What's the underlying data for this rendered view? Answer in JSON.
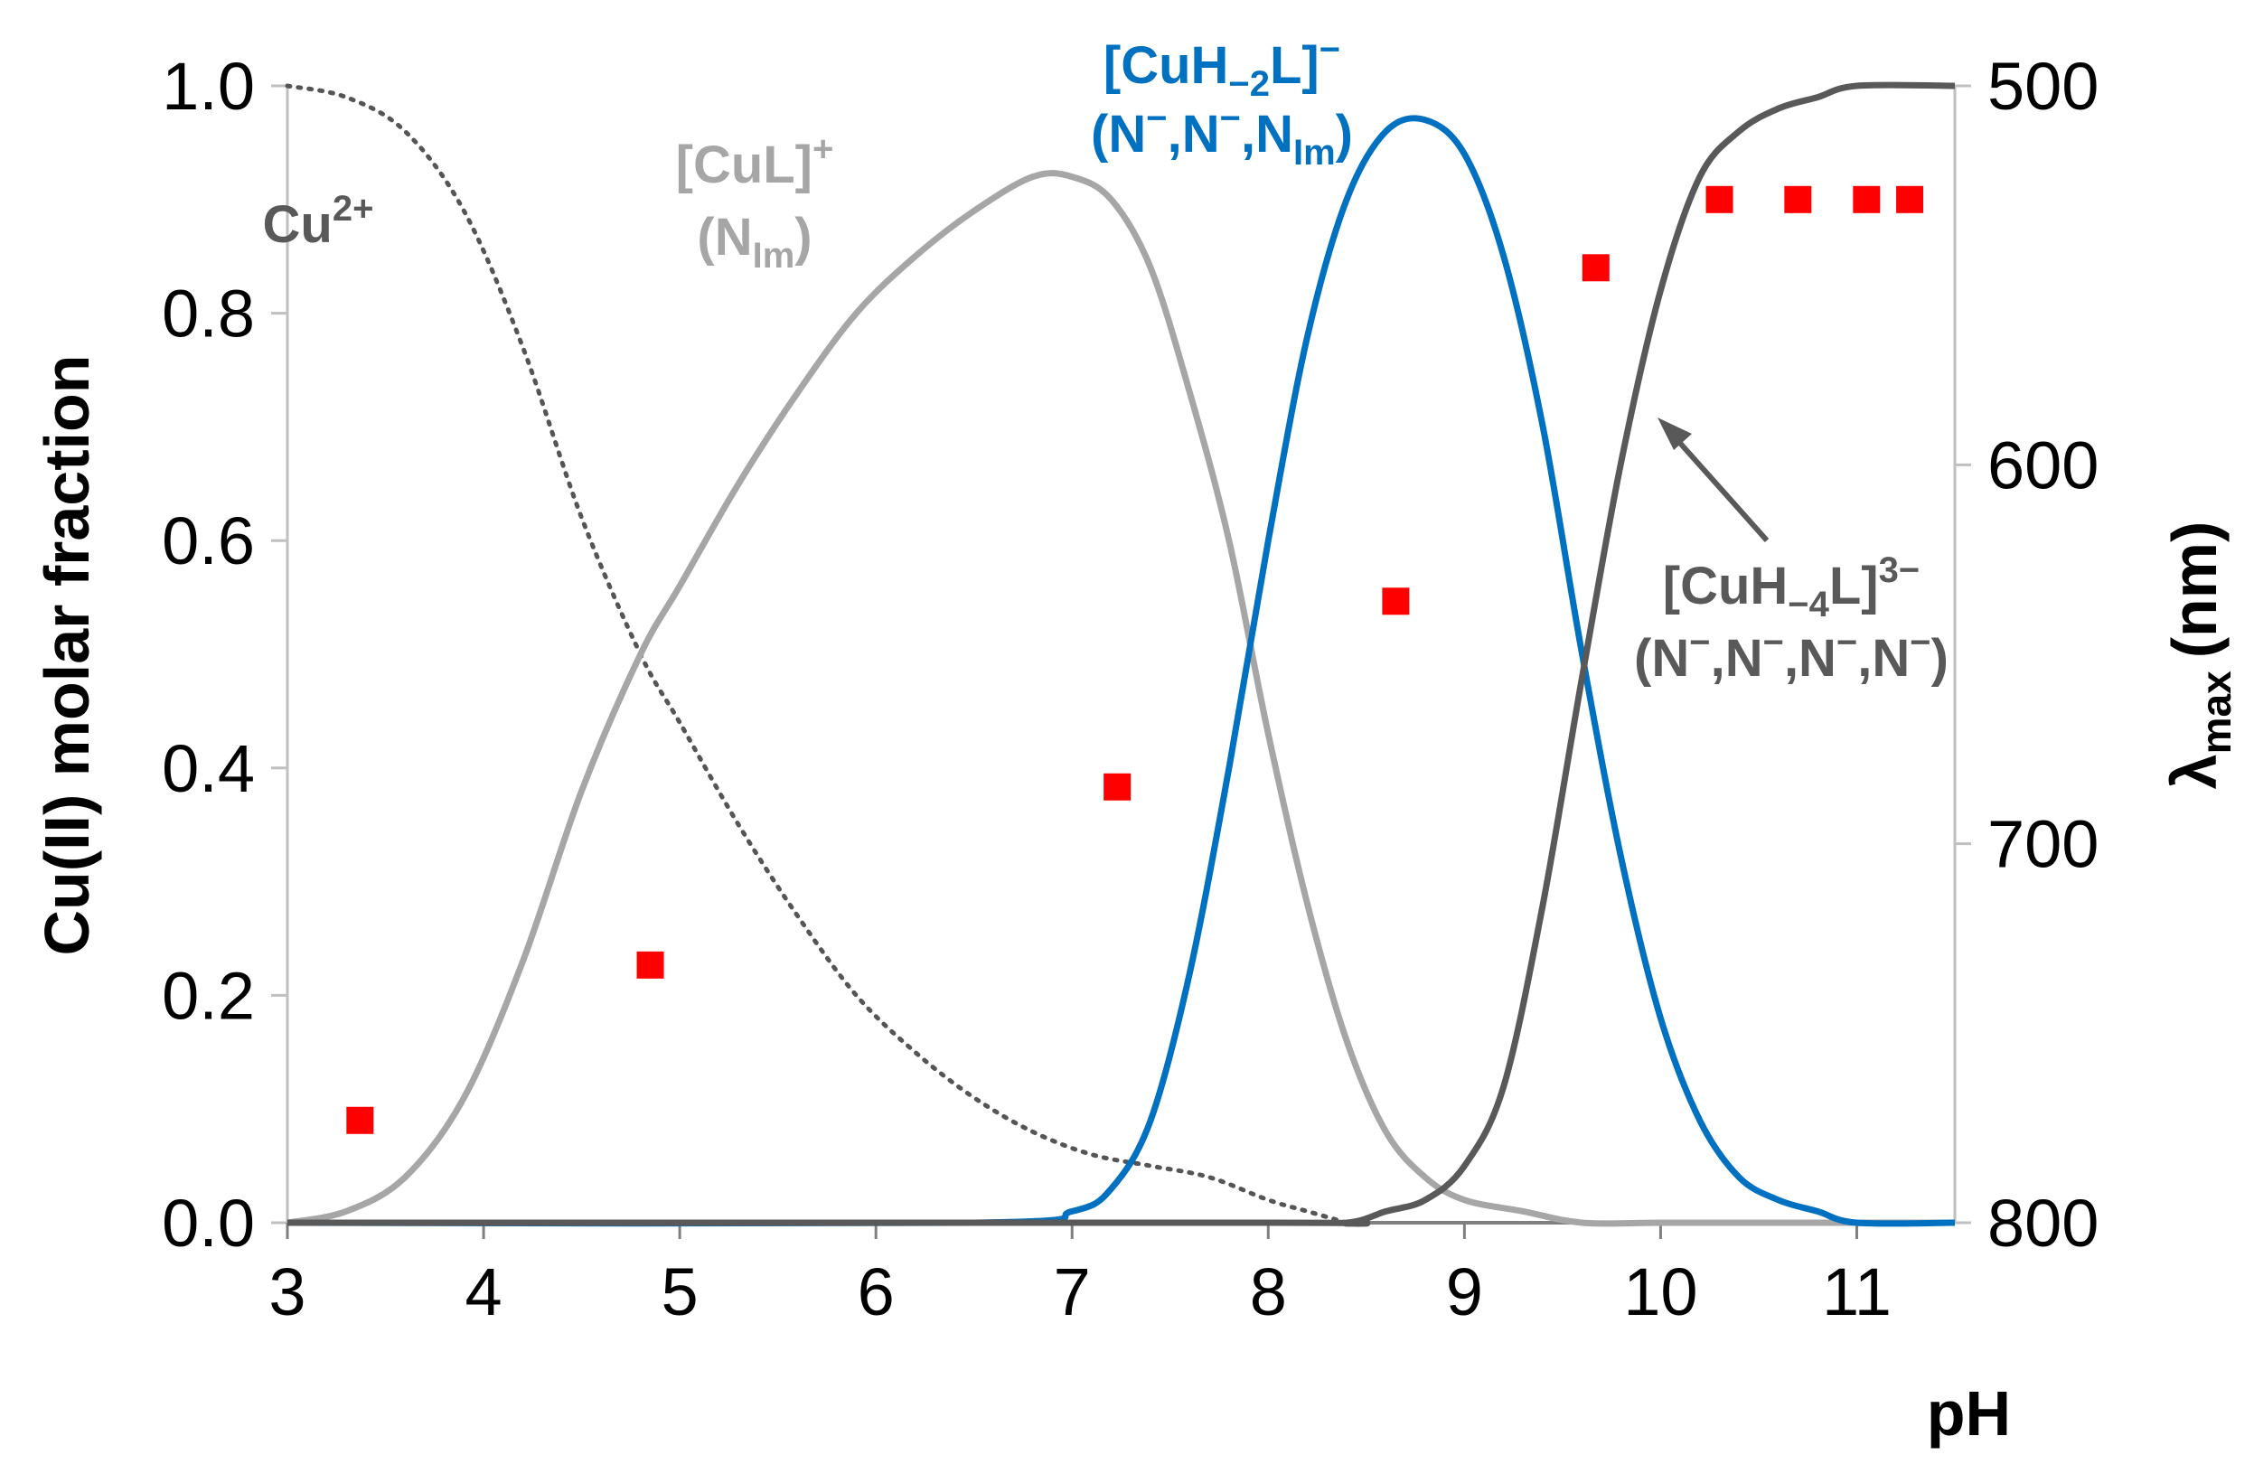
{
  "chart_data": {
    "type": "line",
    "xlabel": "pH",
    "ylabel": "Cu(II) molar fraction",
    "y2label_main": "λ",
    "y2label_sub": "max",
    "y2label_unit": "(nm)",
    "xlim": [
      3,
      11.5
    ],
    "ylim": [
      0,
      1
    ],
    "y2lim": [
      800,
      500
    ],
    "x_ticks": [
      "3",
      "4",
      "5",
      "6",
      "7",
      "8",
      "9",
      "10",
      "11"
    ],
    "y_ticks": [
      "0.0",
      "0.2",
      "0.4",
      "0.6",
      "0.8",
      "1.0"
    ],
    "y2_ticks": [
      "800",
      "700",
      "600",
      "500"
    ],
    "grid": false,
    "series": [
      {
        "name": "Cu²⁺",
        "style": "dotted",
        "color": "#555555",
        "x": [
          3,
          3.3,
          3.6,
          3.9,
          4.2,
          4.5,
          4.8,
          5.0,
          5.3,
          5.6,
          5.9,
          6.2,
          6.5,
          6.8,
          7.1,
          7.4,
          7.7,
          8.0,
          8.2,
          8.4
        ],
        "y": [
          1.0,
          0.99,
          0.96,
          0.89,
          0.77,
          0.62,
          0.5,
          0.44,
          0.35,
          0.27,
          0.2,
          0.15,
          0.11,
          0.08,
          0.06,
          0.05,
          0.04,
          0.02,
          0.01,
          0.0
        ]
      },
      {
        "name": "[CuL]⁺",
        "style": "solid",
        "color": "#a6a6a6",
        "x": [
          3,
          3.3,
          3.6,
          3.9,
          4.2,
          4.5,
          4.8,
          5.0,
          5.3,
          5.6,
          5.9,
          6.2,
          6.5,
          6.8,
          7.0,
          7.2,
          7.4,
          7.6,
          7.8,
          8.0,
          8.2,
          8.4,
          8.6,
          8.8,
          9.0,
          9.3,
          9.6,
          10.0,
          10.5,
          11.5
        ],
        "y": [
          0.0,
          0.01,
          0.04,
          0.11,
          0.23,
          0.38,
          0.5,
          0.56,
          0.65,
          0.73,
          0.8,
          0.85,
          0.89,
          0.92,
          0.92,
          0.9,
          0.84,
          0.73,
          0.6,
          0.43,
          0.28,
          0.16,
          0.08,
          0.04,
          0.02,
          0.01,
          0.0,
          0.0,
          0.0,
          0.0
        ]
      },
      {
        "name": "[CuH₋₂L]⁻",
        "style": "solid",
        "color": "#0070c0",
        "x": [
          3,
          6.5,
          7.0,
          7.2,
          7.4,
          7.6,
          7.8,
          8.0,
          8.2,
          8.4,
          8.6,
          8.8,
          9.0,
          9.2,
          9.4,
          9.6,
          9.8,
          10.0,
          10.2,
          10.4,
          10.6,
          10.8,
          11.0,
          11.5
        ],
        "y": [
          0.0,
          0.0,
          0.01,
          0.03,
          0.09,
          0.22,
          0.4,
          0.6,
          0.78,
          0.9,
          0.96,
          0.97,
          0.94,
          0.85,
          0.7,
          0.5,
          0.32,
          0.18,
          0.09,
          0.04,
          0.02,
          0.01,
          0.0,
          0.0
        ]
      },
      {
        "name": "[CuH₋₄L]³⁻",
        "style": "solid",
        "color": "#595959",
        "x": [
          3,
          8.0,
          8.4,
          8.6,
          8.8,
          9.0,
          9.2,
          9.4,
          9.6,
          9.8,
          10.0,
          10.2,
          10.4,
          10.6,
          10.8,
          11.0,
          11.5
        ],
        "y": [
          0.0,
          0.0,
          0.0,
          0.01,
          0.02,
          0.05,
          0.12,
          0.28,
          0.48,
          0.67,
          0.82,
          0.92,
          0.96,
          0.98,
          0.99,
          1.0,
          1.0
        ]
      },
      {
        "name": "λmax",
        "type": "scatter",
        "axis": "right",
        "color": "#ff0000",
        "x": [
          3.37,
          4.85,
          7.23,
          8.65,
          9.67,
          10.3,
          10.7,
          11.05,
          11.27
        ],
        "y": [
          773,
          732,
          685,
          636,
          548,
          530,
          530,
          530,
          530
        ]
      }
    ],
    "annotations": [
      {
        "lines": [
          [
            "Cu",
            "sup:2+"
          ]
        ],
        "color": "#595959"
      },
      {
        "lines": [
          [
            "[CuL]",
            "sup:+"
          ],
          [
            "(N",
            "sub:Im",
            ")"
          ]
        ],
        "color": "#a6a6a6"
      },
      {
        "lines": [
          [
            "[CuH",
            "sub:−2",
            "L]",
            "sup:−"
          ],
          [
            "(N",
            "sup:−",
            ",N",
            "sup:−",
            ",N",
            "sub:Im",
            ")"
          ]
        ],
        "color": "#0070c0"
      },
      {
        "lines": [
          [
            "[CuH",
            "sub:−4",
            "L]",
            "sup:3−"
          ],
          [
            "(N",
            "sup:−",
            ",N",
            "sup:−",
            ",N",
            "sup:−",
            ",N",
            "sup:−",
            ")"
          ]
        ],
        "color": "#595959"
      }
    ]
  }
}
